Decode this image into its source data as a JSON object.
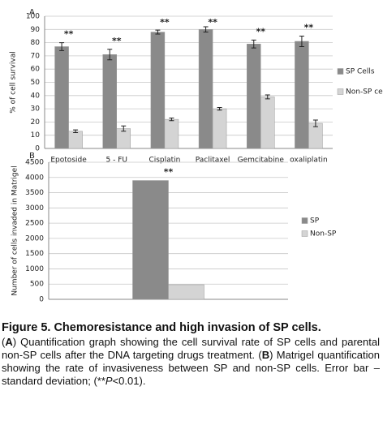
{
  "chart_data": [
    {
      "type": "bar",
      "panel": "A",
      "y_label": "% of cell survival",
      "categories": [
        "Epotoside",
        "5 - FU",
        "Cisplatin",
        "Paclitaxel",
        "Gemcitabine",
        "oxaliplatin"
      ],
      "series": [
        {
          "name": "SP Cells",
          "color": "#8a8a8a",
          "values": [
            77,
            71,
            88,
            90,
            79,
            81
          ],
          "errors": [
            3,
            4,
            1.5,
            2,
            3,
            4
          ]
        },
        {
          "name": "Non-SP cells",
          "color": "#d4d4d4",
          "values": [
            13,
            15,
            22,
            30,
            39,
            19
          ],
          "errors": [
            1,
            2,
            1,
            1,
            1.5,
            2.5
          ]
        }
      ],
      "significance": [
        "**",
        "**",
        "**",
        "**",
        "**",
        "**"
      ],
      "ylim": [
        0,
        100
      ],
      "yticks": [
        0,
        10,
        20,
        30,
        40,
        50,
        60,
        70,
        80,
        90,
        100
      ],
      "grid": true,
      "legend": "right"
    },
    {
      "type": "bar",
      "panel": "B",
      "y_label": "Number of cells invaded in Matrigel",
      "categories": [
        null
      ],
      "series": [
        {
          "name": "SP",
          "color": "#8a8a8a",
          "values": [
            3900
          ]
        },
        {
          "name": "Non-SP",
          "color": "#d4d4d4",
          "values": [
            480
          ]
        }
      ],
      "significance": [
        "**"
      ],
      "ylim": [
        0,
        4500
      ],
      "yticks": [
        0,
        500,
        1000,
        1500,
        2000,
        2500,
        3000,
        3500,
        4000,
        4500
      ],
      "grid": true,
      "legend": "right"
    }
  ],
  "caption": {
    "title": "Figure 5. Chemoresistance and high invasion of SP cells.",
    "body": [
      "(",
      "A",
      ") Quantification graph showing the cell survival rate of SP cells and parental non-SP cells after the DNA targeting drugs treatment. (",
      "B",
      ") Matrigel quantification showing the rate of invasiveness between SP and non-SP cells. Error bar – standard deviation; (**",
      "P",
      "<0.01)."
    ]
  }
}
